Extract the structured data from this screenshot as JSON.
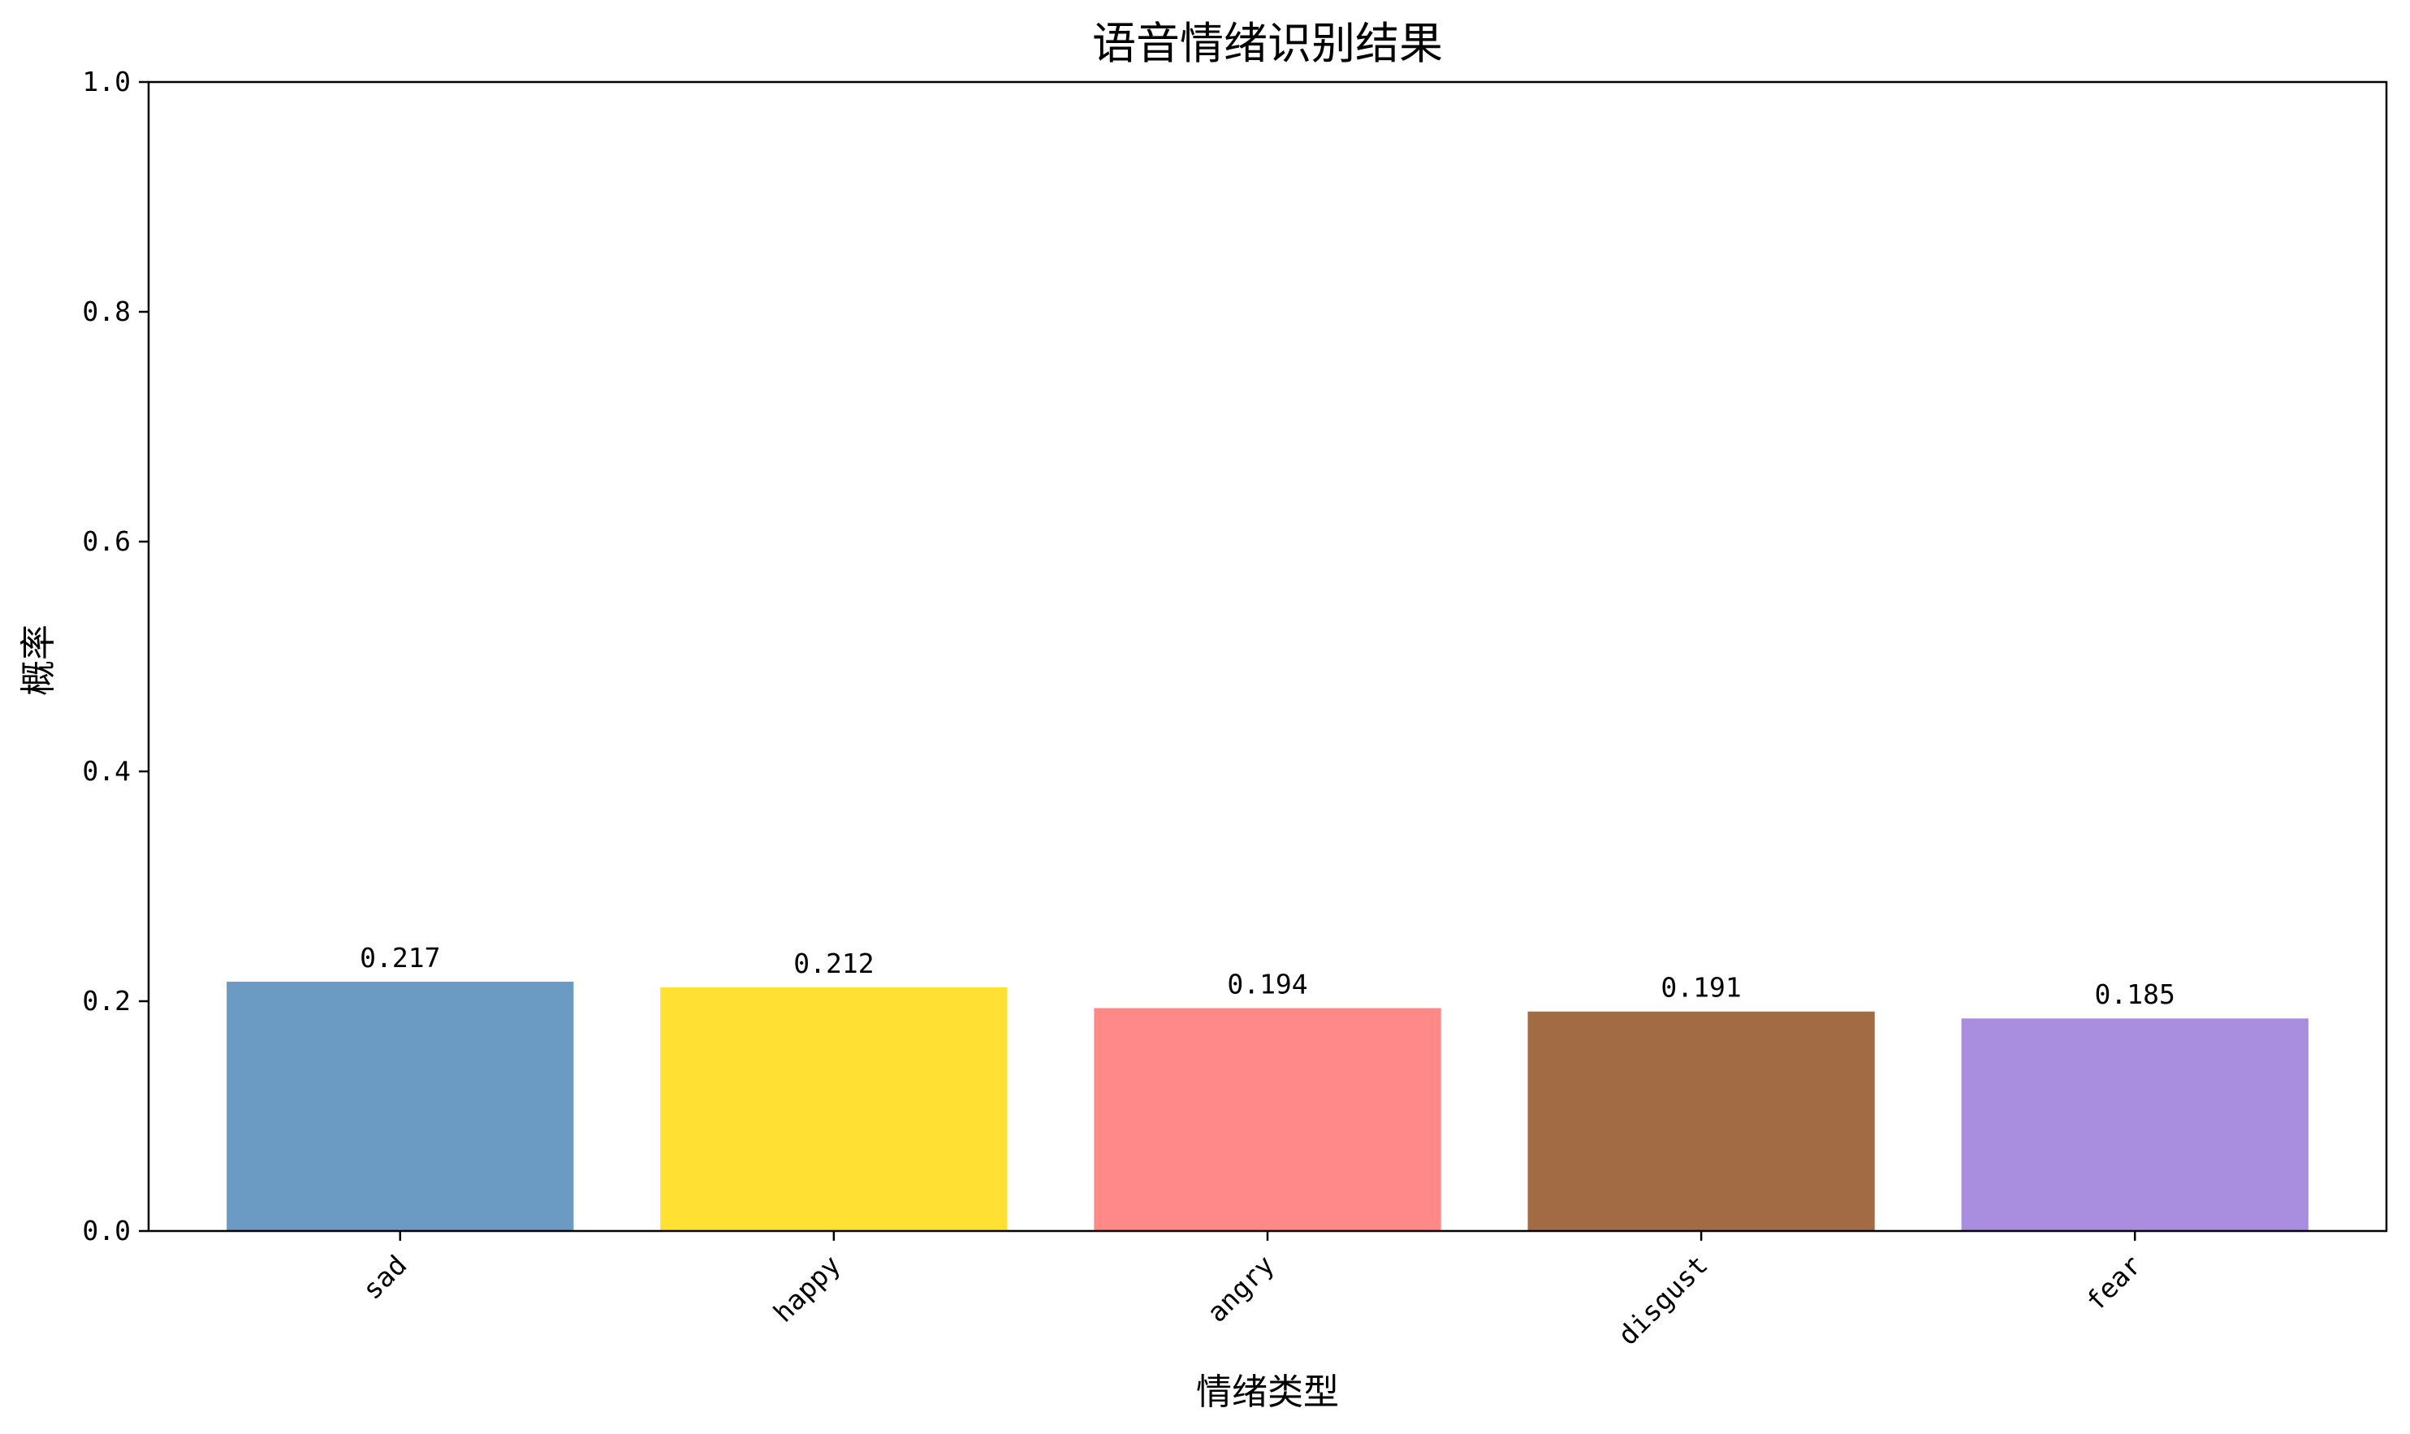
{
  "chart_data": {
    "type": "bar",
    "title": "语音情绪识别结果",
    "xlabel": "情绪类型",
    "ylabel": "概率",
    "categories": [
      "sad",
      "happy",
      "angry",
      "disgust",
      "fear"
    ],
    "values": [
      0.217,
      0.212,
      0.194,
      0.191,
      0.185
    ],
    "value_labels": [
      "0.217",
      "0.212",
      "0.194",
      "0.191",
      "0.185"
    ],
    "bar_colors": [
      "#6b9bc3",
      "#ffe033",
      "#ff8888",
      "#a36b44",
      "#a98ee0"
    ],
    "ylim": [
      0,
      1.0
    ],
    "yticks": [
      0.0,
      0.2,
      0.4,
      0.6,
      0.8,
      1.0
    ],
    "ytick_labels": [
      "0.0",
      "0.2",
      "0.4",
      "0.6",
      "0.8",
      "1.0"
    ],
    "xtick_rotation_deg": 45,
    "grid": false,
    "legend": "none"
  }
}
